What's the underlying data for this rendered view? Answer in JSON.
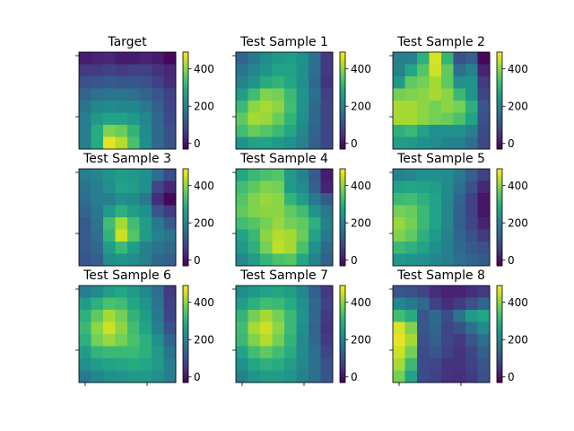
{
  "chart_data": {
    "type": "heatmap",
    "colormap": "viridis",
    "grid": false,
    "rows": 8,
    "cols": 8,
    "colorbar": {
      "vmin": -30,
      "vmax": 490,
      "ticks": [
        0,
        200,
        400
      ],
      "tick_labels": [
        "0",
        "200",
        "400"
      ]
    },
    "axes": {
      "x_ticks": [
        "",
        ""
      ],
      "y_ticks": [
        "",
        ""
      ]
    },
    "panels": [
      {
        "title": "Target",
        "values": [
          [
            10,
            20,
            30,
            10,
            10,
            20,
            10,
            -20
          ],
          [
            60,
            60,
            70,
            60,
            70,
            70,
            50,
            30
          ],
          [
            100,
            110,
            120,
            110,
            110,
            100,
            70,
            40
          ],
          [
            140,
            160,
            170,
            170,
            160,
            140,
            110,
            70
          ],
          [
            170,
            210,
            220,
            210,
            210,
            180,
            130,
            80
          ],
          [
            190,
            250,
            270,
            270,
            250,
            210,
            150,
            90
          ],
          [
            190,
            290,
            390,
            370,
            310,
            220,
            150,
            100
          ],
          [
            190,
            290,
            470,
            430,
            340,
            230,
            150,
            100
          ]
        ]
      },
      {
        "title": "Test Sample 1",
        "values": [
          [
            140,
            180,
            220,
            250,
            260,
            230,
            160,
            60
          ],
          [
            170,
            210,
            240,
            270,
            270,
            230,
            160,
            60
          ],
          [
            200,
            240,
            290,
            310,
            280,
            230,
            150,
            50
          ],
          [
            260,
            330,
            390,
            380,
            320,
            240,
            160,
            70
          ],
          [
            320,
            400,
            420,
            400,
            330,
            240,
            150,
            80
          ],
          [
            360,
            420,
            410,
            370,
            310,
            230,
            150,
            80
          ],
          [
            330,
            370,
            350,
            320,
            280,
            210,
            140,
            80
          ],
          [
            240,
            270,
            270,
            250,
            230,
            190,
            130,
            80
          ]
        ]
      },
      {
        "title": "Test Sample 2",
        "values": [
          [
            190,
            200,
            300,
            460,
            310,
            100,
            130,
            -20
          ],
          [
            200,
            280,
            350,
            450,
            360,
            160,
            200,
            20
          ],
          [
            250,
            360,
            380,
            420,
            360,
            230,
            240,
            60
          ],
          [
            380,
            390,
            400,
            420,
            400,
            320,
            240,
            80
          ],
          [
            420,
            420,
            400,
            380,
            400,
            380,
            300,
            110
          ],
          [
            420,
            420,
            400,
            380,
            370,
            340,
            270,
            100
          ],
          [
            300,
            320,
            270,
            230,
            230,
            230,
            200,
            90
          ],
          [
            260,
            250,
            230,
            220,
            200,
            190,
            160,
            80
          ]
        ]
      },
      {
        "title": "Test Sample 3",
        "values": [
          [
            190,
            210,
            240,
            260,
            250,
            230,
            160,
            90
          ],
          [
            170,
            190,
            230,
            270,
            260,
            230,
            80,
            30
          ],
          [
            160,
            190,
            190,
            230,
            220,
            180,
            40,
            -20
          ],
          [
            140,
            180,
            250,
            300,
            260,
            230,
            110,
            60
          ],
          [
            120,
            170,
            330,
            420,
            330,
            260,
            180,
            120
          ],
          [
            120,
            160,
            310,
            450,
            350,
            260,
            200,
            170
          ],
          [
            120,
            150,
            260,
            320,
            260,
            200,
            170,
            150
          ],
          [
            110,
            130,
            220,
            240,
            220,
            190,
            150,
            130
          ]
        ]
      },
      {
        "title": "Test Sample 4",
        "values": [
          [
            280,
            320,
            340,
            350,
            250,
            200,
            120,
            10
          ],
          [
            330,
            360,
            390,
            380,
            250,
            220,
            130,
            20
          ],
          [
            350,
            390,
            410,
            400,
            310,
            260,
            180,
            120
          ],
          [
            360,
            390,
            400,
            400,
            360,
            330,
            240,
            180
          ],
          [
            330,
            350,
            380,
            410,
            380,
            360,
            300,
            200
          ],
          [
            270,
            320,
            400,
            430,
            420,
            370,
            270,
            180
          ],
          [
            250,
            300,
            380,
            440,
            420,
            340,
            230,
            150
          ],
          [
            210,
            260,
            310,
            340,
            350,
            280,
            200,
            130
          ]
        ]
      },
      {
        "title": "Test Sample 5",
        "values": [
          [
            200,
            210,
            230,
            230,
            220,
            180,
            130,
            70
          ],
          [
            270,
            280,
            270,
            260,
            220,
            160,
            100,
            30
          ],
          [
            320,
            330,
            300,
            270,
            210,
            140,
            70,
            0
          ],
          [
            380,
            370,
            320,
            270,
            210,
            130,
            70,
            0
          ],
          [
            410,
            380,
            320,
            270,
            210,
            130,
            80,
            20
          ],
          [
            390,
            360,
            300,
            250,
            200,
            140,
            100,
            60
          ],
          [
            320,
            300,
            270,
            230,
            190,
            150,
            120,
            100
          ],
          [
            250,
            240,
            230,
            210,
            190,
            160,
            140,
            120
          ]
        ]
      },
      {
        "title": "Test Sample 6",
        "values": [
          [
            190,
            220,
            260,
            280,
            250,
            210,
            160,
            60
          ],
          [
            260,
            300,
            340,
            330,
            280,
            240,
            170,
            70
          ],
          [
            300,
            360,
            420,
            380,
            310,
            260,
            180,
            80
          ],
          [
            320,
            400,
            450,
            400,
            330,
            270,
            190,
            100
          ],
          [
            300,
            380,
            410,
            380,
            340,
            300,
            230,
            140
          ],
          [
            260,
            310,
            320,
            320,
            320,
            300,
            250,
            170
          ],
          [
            230,
            260,
            270,
            280,
            290,
            280,
            250,
            190
          ],
          [
            180,
            210,
            230,
            240,
            250,
            250,
            230,
            190
          ]
        ]
      },
      {
        "title": "Test Sample 7",
        "values": [
          [
            220,
            250,
            270,
            280,
            260,
            210,
            130,
            60
          ],
          [
            260,
            300,
            330,
            320,
            290,
            230,
            150,
            70
          ],
          [
            310,
            380,
            420,
            380,
            320,
            240,
            150,
            60
          ],
          [
            330,
            420,
            450,
            400,
            320,
            230,
            140,
            50
          ],
          [
            320,
            390,
            430,
            380,
            310,
            220,
            150,
            60
          ],
          [
            270,
            330,
            360,
            330,
            290,
            220,
            160,
            80
          ],
          [
            230,
            280,
            300,
            290,
            260,
            210,
            160,
            100
          ],
          [
            200,
            240,
            260,
            260,
            240,
            200,
            160,
            110
          ]
        ]
      },
      {
        "title": "Test Sample 8",
        "values": [
          [
            110,
            100,
            80,
            40,
            20,
            20,
            40,
            60
          ],
          [
            210,
            180,
            150,
            70,
            40,
            60,
            100,
            140
          ],
          [
            330,
            290,
            110,
            150,
            90,
            170,
            250,
            280
          ],
          [
            460,
            390,
            110,
            140,
            80,
            100,
            160,
            220
          ],
          [
            470,
            420,
            100,
            130,
            80,
            60,
            110,
            160
          ],
          [
            450,
            380,
            90,
            110,
            70,
            50,
            80,
            130
          ],
          [
            420,
            320,
            90,
            80,
            50,
            50,
            70,
            110
          ],
          [
            380,
            270,
            90,
            70,
            50,
            40,
            60,
            100
          ]
        ]
      }
    ]
  }
}
